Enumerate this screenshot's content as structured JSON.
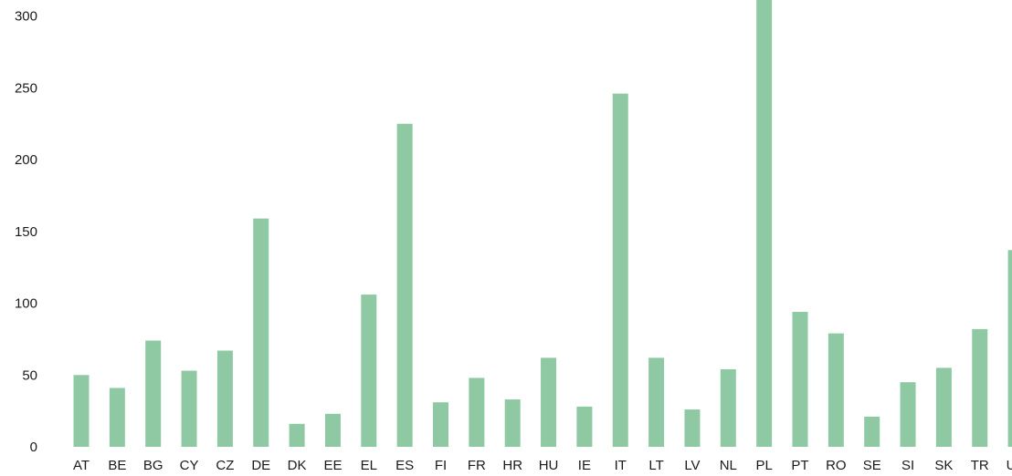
{
  "chart_data": {
    "type": "bar",
    "title": "",
    "xlabel": "",
    "ylabel": "",
    "categories": [
      "AT",
      "BE",
      "BG",
      "CY",
      "CZ",
      "DE",
      "DK",
      "EE",
      "EL",
      "ES",
      "FI",
      "FR",
      "HR",
      "HU",
      "IE",
      "IT",
      "LT",
      "LV",
      "NL",
      "PL",
      "PT",
      "RO",
      "SE",
      "SI",
      "SK",
      "TR",
      "UK"
    ],
    "values": [
      50,
      41,
      74,
      53,
      67,
      159,
      16,
      23,
      106,
      225,
      31,
      48,
      33,
      62,
      28,
      246,
      62,
      26,
      54,
      320,
      94,
      79,
      21,
      45,
      55,
      82,
      137
    ],
    "ylim": [
      0,
      312
    ],
    "yticks": [
      "0",
      "50",
      "100",
      "150",
      "200",
      "250",
      "300"
    ],
    "grid": false,
    "bar_color": "#8fc9a3"
  }
}
